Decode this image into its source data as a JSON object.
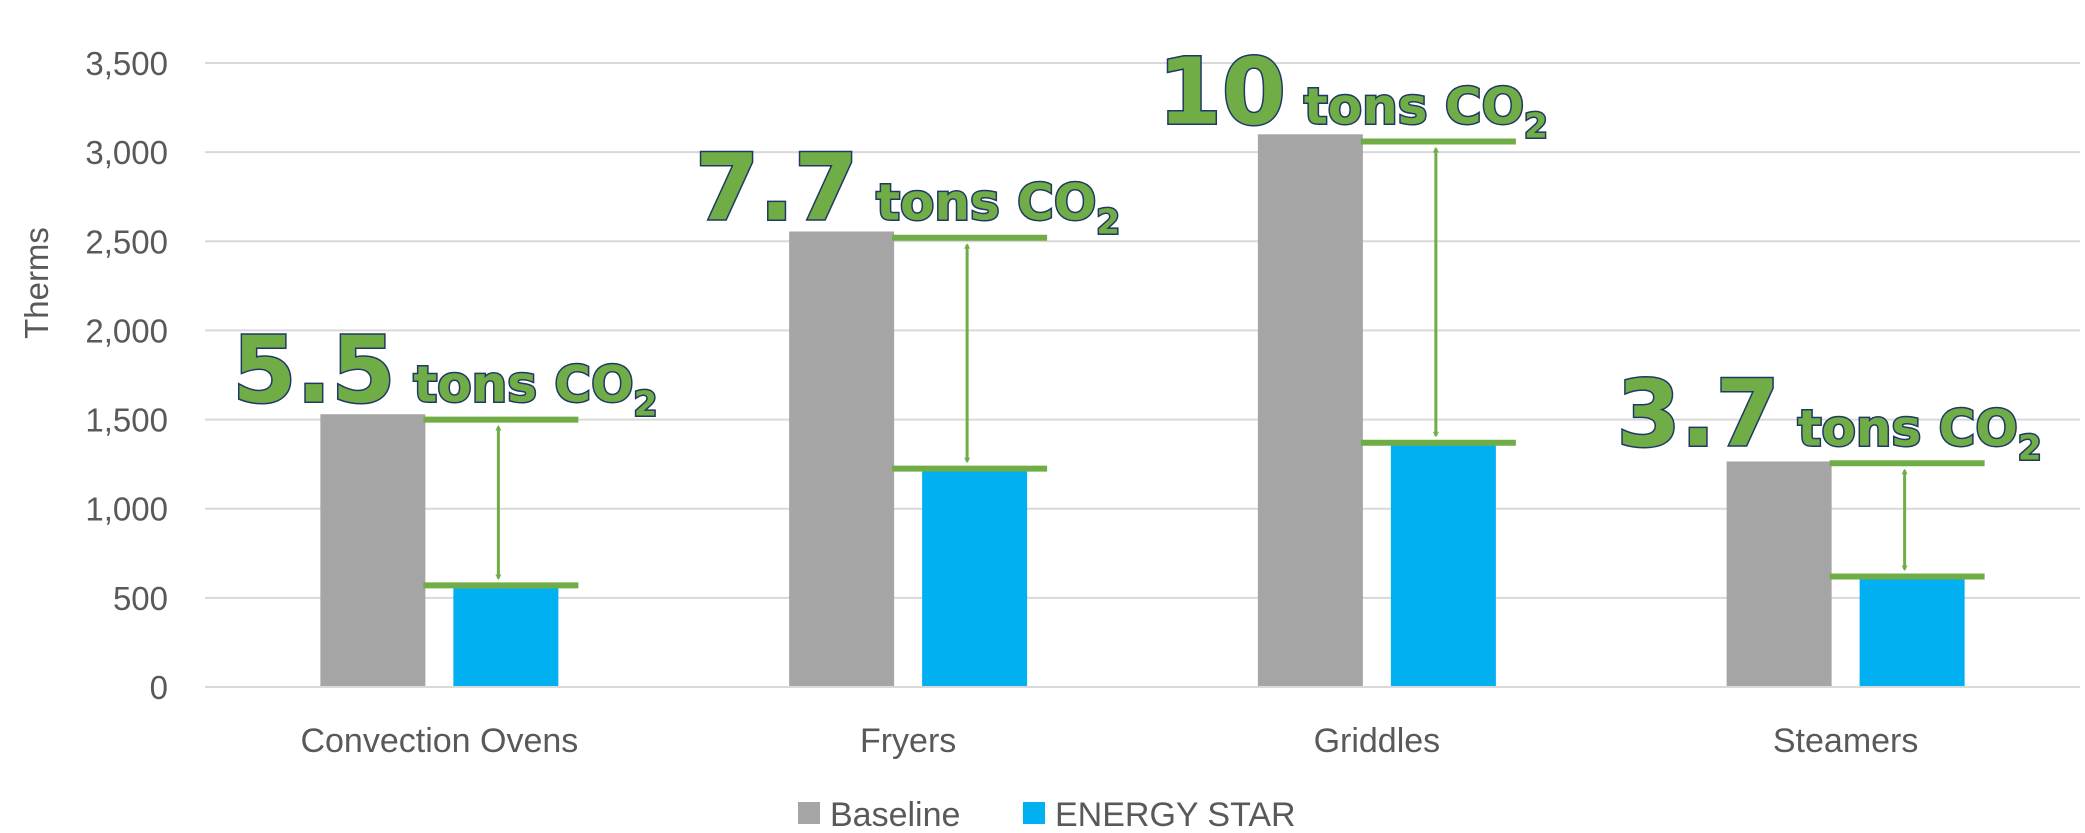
{
  "chart_data": {
    "type": "bar",
    "categories": [
      "Convection Ovens",
      "Fryers",
      "Griddles",
      "Steamers"
    ],
    "series": [
      {
        "name": "Baseline",
        "color": "#A5A5A5",
        "values": [
          1530,
          2555,
          3100,
          1265
        ]
      },
      {
        "name": "ENERGY STAR",
        "color": "#00B0F0",
        "values": [
          555,
          1210,
          1355,
          610
        ]
      }
    ],
    "ylabel": "Therms",
    "ylim": [
      0,
      3500
    ],
    "yticks": [
      {
        "value": 0,
        "label": "0"
      },
      {
        "value": 500,
        "label": "500"
      },
      {
        "value": 1000,
        "label": "1,000"
      },
      {
        "value": 1500,
        "label": "1,500"
      },
      {
        "value": 2000,
        "label": "2,000"
      },
      {
        "value": 2500,
        "label": "2,500"
      },
      {
        "value": 3000,
        "label": "3,000"
      },
      {
        "value": 3500,
        "label": "3,500"
      }
    ],
    "grid": true,
    "legend_position": "bottom",
    "annotation_color": "#70AD47",
    "annotation_outline": "#203864",
    "annotations": [
      {
        "category": "Convection Ovens",
        "number": "5.5",
        "unit": "tons CO",
        "subscript": "2",
        "top": 1500,
        "bottom": 570
      },
      {
        "category": "Fryers",
        "number": "7.7",
        "unit": "tons CO",
        "subscript": "2",
        "top": 2520,
        "bottom": 1225
      },
      {
        "category": "Griddles",
        "number": "10",
        "unit": "tons CO",
        "subscript": "2",
        "top": 3060,
        "bottom": 1370
      },
      {
        "category": "Steamers",
        "number": "3.7",
        "unit": "tons CO",
        "subscript": "2",
        "top": 1255,
        "bottom": 620
      }
    ]
  }
}
